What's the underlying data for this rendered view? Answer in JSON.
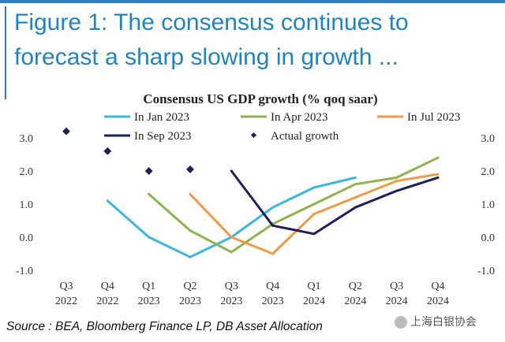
{
  "headline": {
    "line1": "Figure 1: The consensus continues to",
    "line2": "forecast a sharp slowing in growth ..."
  },
  "source": "Source : BEA, Bloomberg Finance LP, DB Asset Allocation",
  "watermark": "上海白银协会",
  "chart_data": {
    "type": "line",
    "title": "Consensus US GDP growth (% qoq saar)",
    "categories": [
      [
        "Q3",
        "2022"
      ],
      [
        "Q4",
        "2022"
      ],
      [
        "Q1",
        "2023"
      ],
      [
        "Q2",
        "2023"
      ],
      [
        "Q3",
        "2023"
      ],
      [
        "Q4",
        "2023"
      ],
      [
        "Q1",
        "2024"
      ],
      [
        "Q2",
        "2024"
      ],
      [
        "Q3",
        "2024"
      ],
      [
        "Q4",
        "2024"
      ]
    ],
    "ylim": [
      -1.0,
      3.0
    ],
    "yticks": [
      "-1.0",
      "0.0",
      "1.0",
      "2.0",
      "3.0"
    ],
    "secondary_yticks": [
      "-1.0",
      "0.0",
      "1.0",
      "2.0",
      "3.0"
    ],
    "series": [
      {
        "name": "In Jan 2023",
        "color": "#35b8e6",
        "values": [
          null,
          1.1,
          0.0,
          -0.6,
          0.0,
          0.9,
          1.5,
          1.8,
          null,
          null
        ]
      },
      {
        "name": "In Apr 2023",
        "color": "#8bb54a",
        "values": [
          null,
          null,
          1.3,
          0.2,
          -0.45,
          0.4,
          1.0,
          1.6,
          1.8,
          2.4
        ]
      },
      {
        "name": "In Jul 2023",
        "color": "#f39a3e",
        "values": [
          null,
          null,
          null,
          1.3,
          0.0,
          -0.5,
          0.7,
          1.2,
          1.7,
          1.9
        ]
      },
      {
        "name": "In Sep 2023",
        "color": "#1c2060",
        "values": [
          null,
          null,
          null,
          null,
          2.0,
          0.35,
          0.1,
          0.9,
          1.4,
          1.8
        ]
      }
    ],
    "actual": {
      "name": "Actual growth",
      "color": "#1c2060",
      "values": [
        3.2,
        2.6,
        2.0,
        2.05,
        null,
        null,
        null,
        null,
        null,
        null
      ]
    },
    "legend": [
      {
        "label": "In Jan 2023",
        "color": "#35b8e6",
        "kind": "line"
      },
      {
        "label": "In Apr 2023",
        "color": "#8bb54a",
        "kind": "line"
      },
      {
        "label": "In Jul 2023",
        "color": "#f39a3e",
        "kind": "line"
      },
      {
        "label": "In Sep 2023",
        "color": "#1c2060",
        "kind": "line"
      },
      {
        "label": "Actual growth",
        "color": "#1c2060",
        "kind": "marker"
      }
    ]
  }
}
